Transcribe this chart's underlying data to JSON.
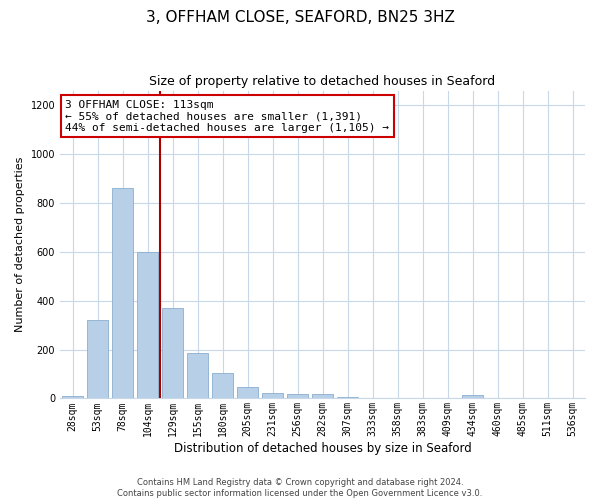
{
  "title": "3, OFFHAM CLOSE, SEAFORD, BN25 3HZ",
  "subtitle": "Size of property relative to detached houses in Seaford",
  "xlabel": "Distribution of detached houses by size in Seaford",
  "ylabel": "Number of detached properties",
  "bar_labels": [
    "28sqm",
    "53sqm",
    "78sqm",
    "104sqm",
    "129sqm",
    "155sqm",
    "180sqm",
    "205sqm",
    "231sqm",
    "256sqm",
    "282sqm",
    "307sqm",
    "333sqm",
    "358sqm",
    "383sqm",
    "409sqm",
    "434sqm",
    "460sqm",
    "485sqm",
    "511sqm",
    "536sqm"
  ],
  "bar_values": [
    10,
    320,
    860,
    600,
    370,
    185,
    105,
    45,
    22,
    18,
    20,
    5,
    0,
    0,
    0,
    0,
    12,
    0,
    0,
    0,
    0
  ],
  "bar_color": "#b8cfe8",
  "bar_edge_color": "#8aafd0",
  "vline_color": "#aa0000",
  "annotation_line1": "3 OFFHAM CLOSE: 113sqm",
  "annotation_line2": "← 55% of detached houses are smaller (1,391)",
  "annotation_line3": "44% of semi-detached houses are larger (1,105) →",
  "annotation_box_color": "#ffffff",
  "annotation_box_edge": "#cc0000",
  "ylim": [
    0,
    1260
  ],
  "yticks": [
    0,
    200,
    400,
    600,
    800,
    1000,
    1200
  ],
  "footer_line1": "Contains HM Land Registry data © Crown copyright and database right 2024.",
  "footer_line2": "Contains public sector information licensed under the Open Government Licence v3.0.",
  "background_color": "#ffffff",
  "grid_color": "#c8d8e8",
  "title_fontsize": 11,
  "subtitle_fontsize": 9,
  "ylabel_fontsize": 8,
  "xlabel_fontsize": 8.5,
  "tick_fontsize": 7,
  "annotation_fontsize": 8,
  "footer_fontsize": 6
}
